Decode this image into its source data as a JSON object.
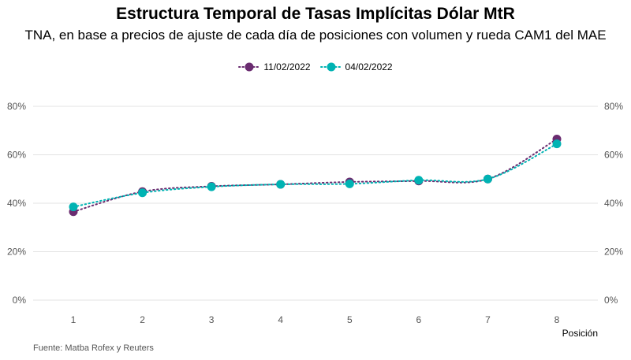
{
  "chart_data": {
    "type": "line",
    "title": "Estructura Temporal de Tasas Implícitas Dólar MtR",
    "subtitle": "TNA, en base a precios de ajuste de cada día de posiciones con volumen y rueda CAM1 del MAE",
    "xlabel": "Posición",
    "ylabel": "",
    "x": [
      1,
      2,
      3,
      4,
      5,
      6,
      7,
      8
    ],
    "x_tick_labels": [
      "1",
      "2",
      "3",
      "4",
      "5",
      "6",
      "7",
      "8"
    ],
    "ylim": [
      0,
      80
    ],
    "y_ticks": [
      0,
      20,
      40,
      60,
      80
    ],
    "y_tick_labels": [
      "0%",
      "20%",
      "40%",
      "60%",
      "80%"
    ],
    "grid": true,
    "legend_position": "top",
    "series": [
      {
        "name": "11/02/2022",
        "color": "#6a2c70",
        "values": [
          36.5,
          44.8,
          47.0,
          47.8,
          48.8,
          49.2,
          50.0,
          66.5
        ]
      },
      {
        "name": "04/02/2022",
        "color": "#00b3b3",
        "values": [
          38.5,
          44.3,
          46.8,
          47.8,
          48.0,
          49.5,
          50.0,
          64.5
        ]
      }
    ],
    "source": "Fuente: Matba Rofex y Reuters"
  }
}
